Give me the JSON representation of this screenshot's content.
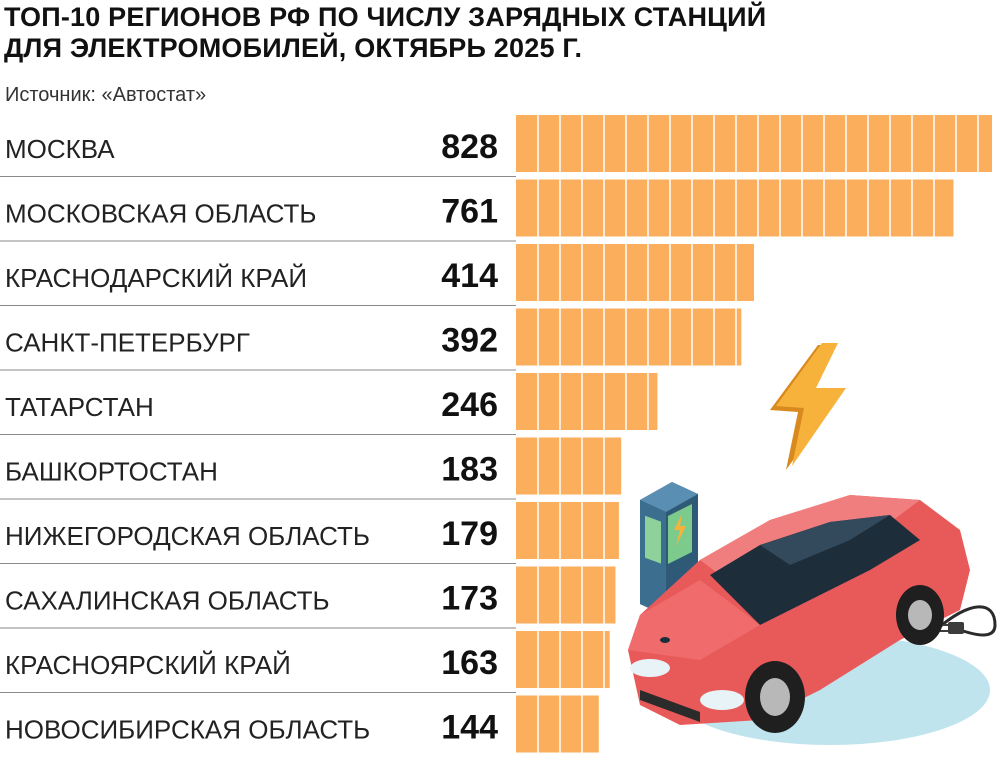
{
  "header": {
    "title_line1": "ТОП-10 РЕГИОНОВ РФ ПО ЧИСЛУ ЗАРЯДНЫХ СТАНЦИЙ",
    "title_line2": "ДЛЯ ЭЛЕКТРОМОБИЛЕЙ, ОКТЯБРЬ 2025 г.",
    "source": "Источник: «Автостат»"
  },
  "colors": {
    "bar_fill": "#FBAE5C",
    "bar_stripe": "#FFFFFF",
    "divider": "#8A8A8A",
    "car_body": "#E8595A",
    "charger_body": "#3C6E90",
    "bolt": "#F7B23B"
  },
  "illustration": {
    "icons": [
      "lightning-bolt-icon",
      "charging-station-icon",
      "electric-car-icon",
      "plug-icon"
    ]
  },
  "chart_data": {
    "type": "bar",
    "orientation": "horizontal",
    "categories": [
      "МОСКВА",
      "МОСКОВСКАЯ ОБЛАСТЬ",
      "КРАСНОДАРСКИЙ КРАЙ",
      "САНКТ-ПЕТЕРБУРГ",
      "ТАТАРСТАН",
      "БАШКОРТОСТАН",
      "НИЖЕГОРОДСКАЯ ОБЛАСТЬ",
      "САХАЛИНСКАЯ ОБЛАСТЬ",
      "КРАСНОЯРСКИЙ КРАЙ",
      "НОВОСИБИРСКАЯ ОБЛАСТЬ"
    ],
    "values": [
      828,
      761,
      414,
      392,
      246,
      183,
      179,
      173,
      163,
      144
    ],
    "value_labels": [
      "828",
      "761",
      "414",
      "392",
      "246",
      "183",
      "179",
      "173",
      "163",
      "144"
    ],
    "xlim": [
      0,
      828
    ],
    "grid": false,
    "legend": "none"
  }
}
